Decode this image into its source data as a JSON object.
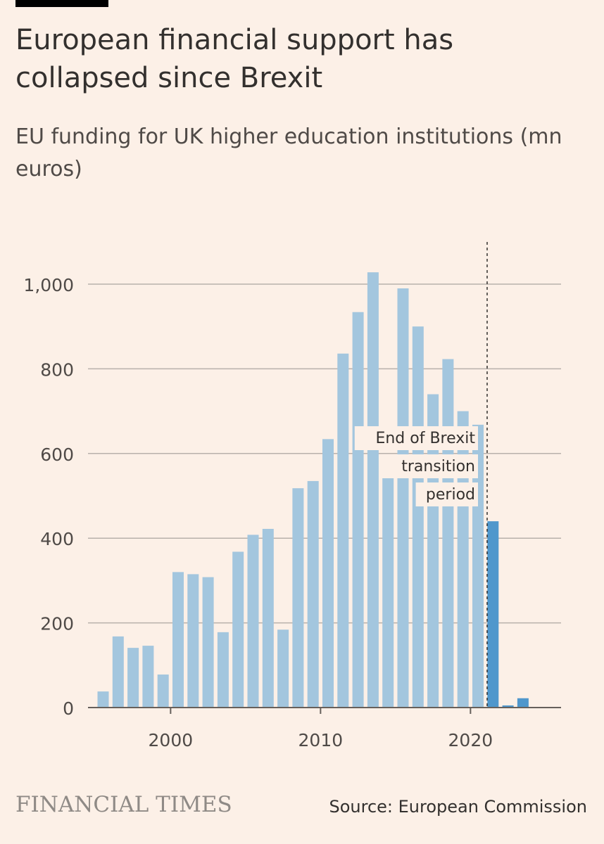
{
  "header": {
    "title": "European financial support has collapsed since Brexit",
    "subtitle": "EU funding for UK higher education institutions (mn euros)"
  },
  "footer": {
    "brand": "FINANCIAL TIMES",
    "source": "Source: European Commission"
  },
  "colors": {
    "background": "#fcf0e7",
    "bar_pre": "#a3c6de",
    "bar_post": "#4f97cc",
    "grid": "#b8b1ab",
    "text": "#33302e"
  },
  "chart_data": {
    "type": "bar",
    "title": "European financial support has collapsed since Brexit",
    "ylabel": "",
    "xlabel": "",
    "ylim": [
      0,
      1000
    ],
    "y_ticks": [
      0,
      200,
      400,
      600,
      800,
      1000
    ],
    "y_tick_labels": [
      "0",
      "200",
      "400",
      "600",
      "800",
      "1,000"
    ],
    "x_ticks": [
      2000,
      2010,
      2020
    ],
    "x_tick_labels": [
      "2000",
      "2010",
      "2020"
    ],
    "categories": [
      1995,
      1996,
      1997,
      1998,
      1999,
      2000,
      2001,
      2002,
      2003,
      2004,
      2005,
      2006,
      2007,
      2008,
      2009,
      2010,
      2011,
      2012,
      2013,
      2014,
      2015,
      2016,
      2017,
      2018,
      2019,
      2020,
      2021,
      2022,
      2023
    ],
    "values": [
      38,
      168,
      141,
      146,
      78,
      320,
      315,
      308,
      178,
      368,
      408,
      422,
      184,
      518,
      535,
      634,
      836,
      934,
      1028,
      568,
      990,
      900,
      740,
      823,
      700,
      668,
      440,
      5,
      22
    ],
    "annotation": {
      "x": 2020.5,
      "lines": [
        "End of Brexit",
        "transition",
        "period"
      ]
    }
  }
}
